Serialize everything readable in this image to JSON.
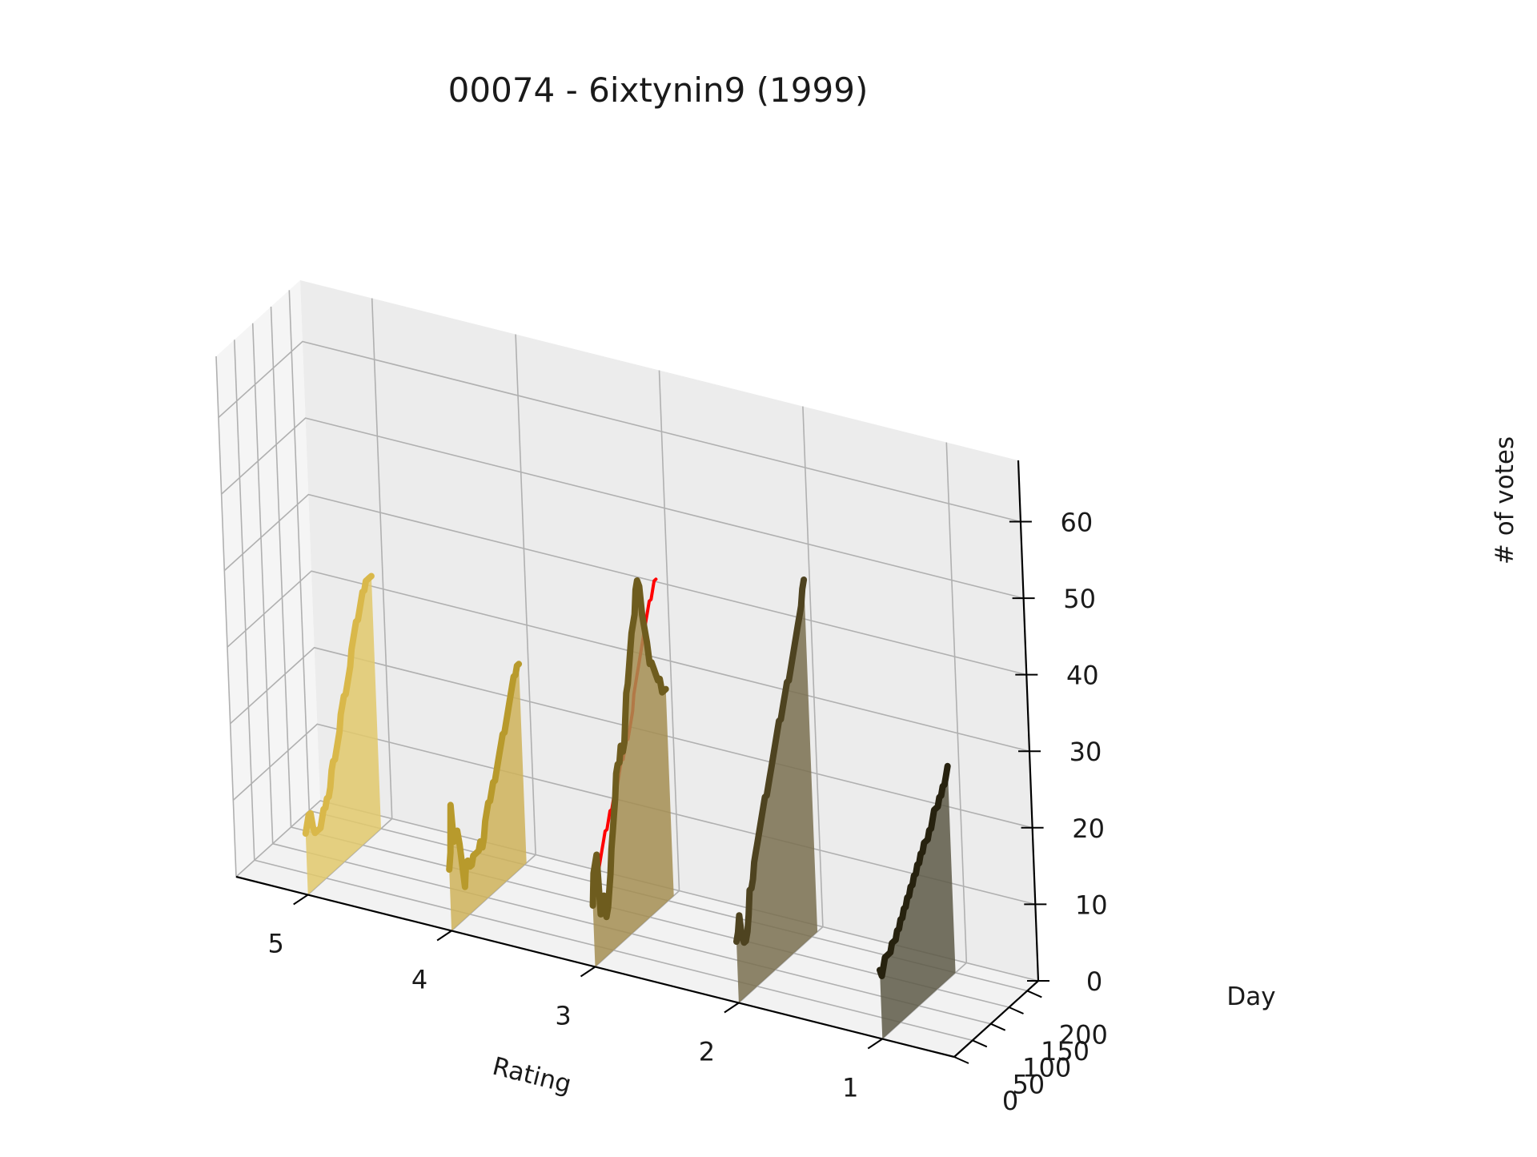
{
  "title": "00074 - 6ixtynin9 (1999)",
  "chart_data": {
    "type": "area",
    "projection": "3d",
    "title": "00074 - 6ixtynin9 (1999)",
    "xlabel": "Rating",
    "ylabel": "Day",
    "zlabel": "# of votes",
    "x_ticks": [
      "5",
      "4",
      "3",
      "2",
      "1"
    ],
    "y_ticks": [
      "0",
      "50",
      "100",
      "150",
      "200"
    ],
    "z_ticks": [
      "0",
      "10",
      "20",
      "30",
      "40",
      "50",
      "60"
    ],
    "xlim": [
      0.5,
      5.5
    ],
    "ylim": [
      0,
      230
    ],
    "zlim": [
      0,
      68
    ],
    "grid": true,
    "series": [
      {
        "rating": 5,
        "color": "#d9b84a",
        "fill_color": "#e2c96c",
        "days": [
          0,
          5,
          10,
          15,
          20,
          25,
          30,
          35,
          40,
          45,
          50,
          55,
          60,
          65,
          70,
          75,
          80,
          85,
          90,
          95,
          100,
          105,
          110,
          115,
          120,
          125,
          130,
          135,
          140,
          145,
          150,
          155,
          160,
          165,
          170,
          175,
          180,
          185,
          190,
          195,
          200
        ],
        "values": [
          0,
          1,
          2,
          2,
          0,
          -1,
          -1,
          -1,
          -1,
          0,
          1,
          1,
          2,
          2,
          3,
          5,
          6,
          6,
          7,
          8,
          9,
          11,
          12,
          13,
          13,
          14,
          15,
          16,
          18,
          19,
          20,
          21,
          21,
          22,
          23,
          24,
          24,
          25,
          25,
          25,
          25
        ]
      },
      {
        "rating": 4,
        "color": "#b89a2c",
        "fill_color": "#cfb35a",
        "days": [
          0,
          5,
          10,
          15,
          20,
          25,
          30,
          35,
          40,
          45,
          50,
          55,
          60,
          65,
          70,
          75,
          80,
          85,
          90,
          95,
          100,
          105,
          110,
          115,
          120,
          125,
          130,
          135,
          140,
          145,
          150,
          155,
          160,
          165,
          170,
          175,
          180,
          185,
          190,
          195,
          200,
          205
        ],
        "values": [
          0,
          2,
          8,
          3,
          4,
          4,
          2,
          -1,
          -4,
          -1,
          -1,
          -2,
          -2,
          -1,
          -1,
          -1,
          -1,
          0,
          -1,
          0,
          2,
          3,
          4,
          4,
          5,
          6,
          6,
          7,
          8,
          9,
          10,
          11,
          11,
          12,
          13,
          14,
          15,
          16,
          17,
          17,
          18,
          18
        ]
      },
      {
        "rating": 3,
        "color": "#ff0000",
        "fill_color": "#ffffff",
        "days": [
          0,
          5,
          10,
          15,
          20,
          25,
          30,
          35,
          40,
          45,
          50,
          55,
          60,
          65,
          70,
          75,
          80,
          85,
          90,
          95,
          100,
          105,
          110,
          115,
          120,
          125,
          130,
          135,
          140,
          145,
          150,
          155,
          160,
          165,
          170,
          175,
          180,
          185,
          190,
          195,
          200
        ],
        "values": [
          0,
          2,
          3,
          4,
          4,
          5,
          6,
          7,
          8,
          8,
          9,
          10,
          10,
          11,
          12,
          12,
          13,
          14,
          15,
          15,
          16,
          17,
          17,
          18,
          19,
          20,
          22,
          23,
          24,
          25,
          26,
          27,
          28,
          29,
          30,
          31,
          32,
          32,
          33,
          34,
          34
        ]
      },
      {
        "rating": 3,
        "color": "#6e5c1e",
        "fill_color": "#a48e52",
        "days": [
          0,
          5,
          10,
          15,
          20,
          25,
          30,
          35,
          40,
          45,
          50,
          55,
          60,
          65,
          70,
          75,
          80,
          85,
          90,
          95,
          100,
          105,
          110,
          115,
          120,
          125,
          130,
          135,
          140,
          145,
          150,
          155,
          160,
          165,
          170,
          175,
          180,
          185,
          190,
          195,
          200,
          205,
          210,
          215
        ],
        "values": [
          0,
          4,
          5,
          6,
          -2,
          -1,
          0,
          -3,
          -2,
          0,
          2,
          5,
          7,
          9,
          11,
          14,
          15,
          15,
          17,
          16,
          17,
          20,
          23,
          24,
          26,
          28,
          30,
          31,
          32,
          35,
          36,
          35,
          31,
          29,
          27,
          24,
          24,
          23,
          22,
          21,
          21,
          19,
          19,
          19
        ]
      },
      {
        "rating": 2,
        "color": "#4e4320",
        "fill_color": "#7a7050",
        "days": [
          0,
          5,
          10,
          15,
          20,
          25,
          30,
          35,
          40,
          45,
          50,
          55,
          60,
          65,
          70,
          75,
          80,
          85,
          90,
          95,
          100,
          105,
          110,
          115,
          120,
          125,
          130,
          135,
          140,
          145,
          150,
          155,
          160,
          165,
          170,
          175,
          180,
          185,
          190,
          195,
          200,
          205,
          210,
          215
        ],
        "values": [
          0,
          1,
          3,
          0,
          -1,
          -1,
          0,
          2,
          5,
          5,
          6,
          8,
          9,
          10,
          11,
          12,
          13,
          14,
          15,
          15,
          16,
          17,
          18,
          19,
          20,
          21,
          22,
          23,
          23,
          24,
          25,
          26,
          27,
          27,
          28,
          29,
          30,
          31,
          32,
          33,
          34,
          35,
          37,
          38
        ]
      },
      {
        "rating": 1,
        "color": "#27220f",
        "fill_color": "#5e5a48",
        "days": [
          0,
          5,
          10,
          15,
          20,
          25,
          30,
          35,
          40,
          45,
          50,
          55,
          60,
          65,
          70,
          75,
          80,
          85,
          90,
          95,
          100,
          105,
          110,
          115,
          120,
          125,
          130,
          135,
          140,
          145,
          150,
          155,
          160,
          165,
          170,
          175,
          180,
          185,
          190,
          195,
          200
        ],
        "values": [
          1,
          0,
          1,
          2,
          2,
          2,
          2,
          3,
          3,
          3,
          4,
          4,
          5,
          5,
          6,
          6,
          7,
          7,
          8,
          8,
          9,
          9,
          10,
          10,
          11,
          11,
          12,
          12,
          12,
          13,
          13,
          14,
          15,
          15,
          15,
          16,
          16,
          17,
          17,
          18,
          19
        ]
      }
    ]
  }
}
